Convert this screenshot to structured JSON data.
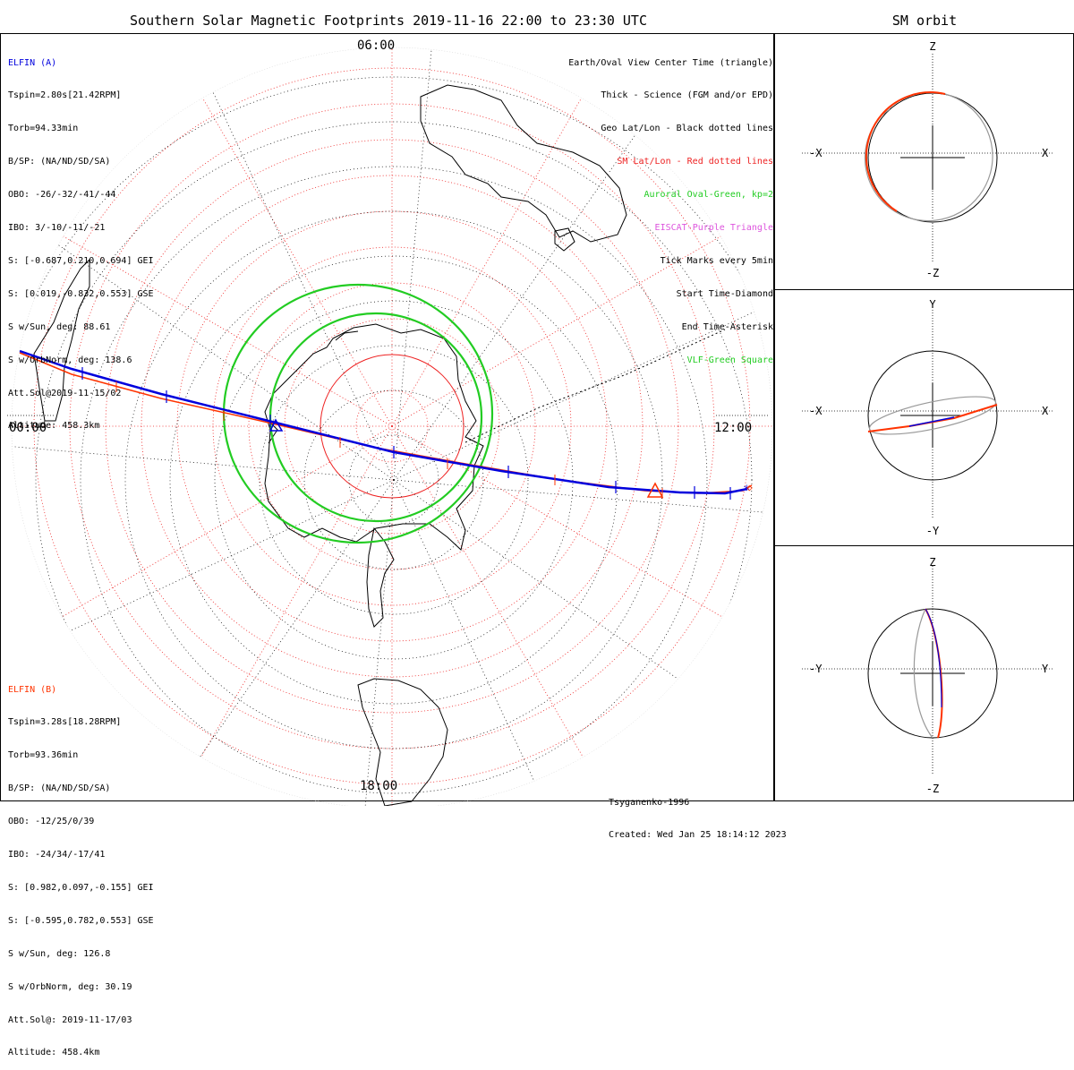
{
  "title": "Southern Solar Magnetic Footprints 2019-11-16 22:00 to 23:30 UTC",
  "side_title": "SM orbit",
  "colors": {
    "elfin_a": "#0000dd",
    "elfin_b": "#ff3300",
    "oval": "#22cc22",
    "sm_grid": "#ee2222",
    "geo_grid": "#000000",
    "eiscat": "#dd55dd",
    "vlf": "#22cc22"
  },
  "elfin_a": {
    "name": "ELFIN (A)",
    "lines": [
      "Tspin=2.80s[21.42RPM]",
      "Torb=94.33min",
      "B/SP: (NA/ND/SD/SA)",
      "OBO: -26/-32/-41/-44",
      "IBO: 3/-10/-11/-21",
      "S: [-0.687,0.210,0.694] GEI",
      "S: [0.019,-0.832,0.553] GSE",
      "S w/Sun, deg: 88.61",
      "S w/OrbNorm, deg: 138.6",
      "Att.Sol@2019-11-15/02",
      "Altitude: 458.3km"
    ]
  },
  "elfin_b": {
    "name": "ELFIN (B)",
    "lines": [
      "Tspin=3.28s[18.28RPM]",
      "Torb=93.36min",
      "B/SP: (NA/ND/SD/SA)",
      "OBO: -12/25/0/39",
      "IBO: -24/34/-17/41",
      "S: [0.982,0.097,-0.155] GEI",
      "S: [-0.595,0.782,0.553] GSE",
      "S w/Sun, deg: 126.8",
      "S w/OrbNorm, deg: 30.19",
      "Att.Sol@: 2019-11-17/03",
      "Altitude: 458.4km"
    ]
  },
  "legend": [
    {
      "text": "Earth/Oval View Center Time (triangle)",
      "color": "#000000"
    },
    {
      "text": "Thick - Science (FGM and/or EPD)",
      "color": "#000000"
    },
    {
      "text": "Geo Lat/Lon - Black dotted lines",
      "color": "#000000"
    },
    {
      "text": "SM Lat/Lon - Red dotted lines",
      "color": "#ee2222"
    },
    {
      "text": "Auroral Oval-Green, kp=2",
      "color": "#22cc22"
    },
    {
      "text": "EISCAT-Purple Triangle",
      "color": "#dd55dd"
    },
    {
      "text": "Tick Marks every 5min",
      "color": "#000000"
    },
    {
      "text": "Start Time-Diamond",
      "color": "#000000"
    },
    {
      "text": "End Time-Asterisk",
      "color": "#000000"
    },
    {
      "text": "VLF-Green Square",
      "color": "#22cc22"
    }
  ],
  "clock_labels": {
    "top": "06:00",
    "left": "00:00",
    "right": "12:00",
    "bottom": "18:00"
  },
  "credits": {
    "model": "Tsyganenko-1996",
    "created": "Created: Wed Jan 25 18:14:12 2023"
  },
  "sm_panels": [
    {
      "top": "Z",
      "bottom": "-Z",
      "left": "-X",
      "right": "X"
    },
    {
      "top": "Y",
      "bottom": "-Y",
      "left": "-X",
      "right": "X"
    },
    {
      "top": "Z",
      "bottom": "-Z",
      "left": "-Y",
      "right": "Y"
    }
  ]
}
